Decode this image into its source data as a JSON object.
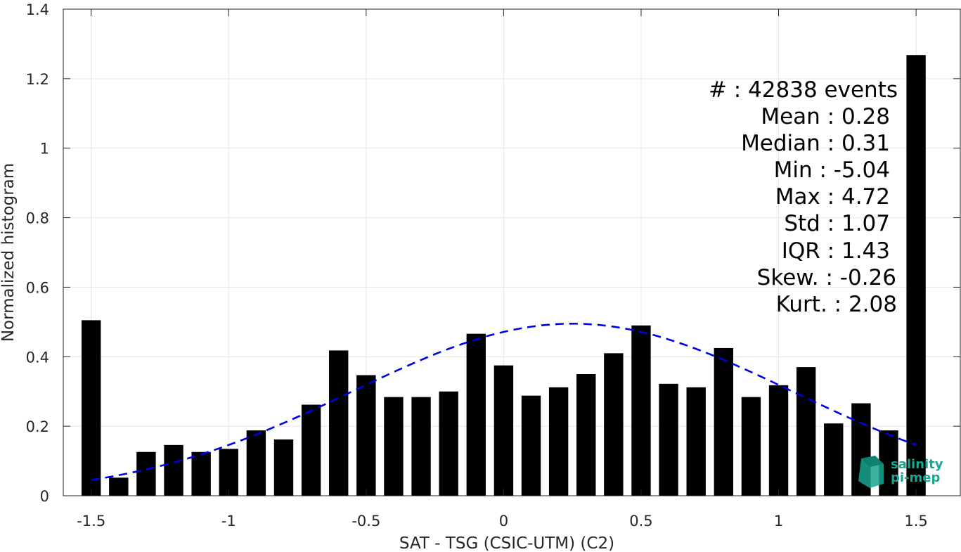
{
  "chart_data": {
    "type": "bar",
    "xlabel": "SAT - TSG (CSIC-UTM) (C2)",
    "ylabel": "Normalized histogram",
    "xlim": [
      -1.5,
      1.5
    ],
    "ylim": [
      0,
      1.4
    ],
    "xticks": [
      -1.5,
      -1,
      -0.5,
      0,
      0.5,
      1,
      1.5
    ],
    "xtick_labels": [
      "-1.5",
      "-1",
      "-0.5",
      "0",
      "0.5",
      "1",
      "1.5"
    ],
    "yticks": [
      0,
      0.2,
      0.4,
      0.6,
      0.8,
      1,
      1.2,
      1.4
    ],
    "ytick_labels": [
      "0",
      "0.2",
      "0.4",
      "0.6",
      "0.8",
      "1",
      "1.2",
      "1.4"
    ],
    "grid": true,
    "bar_color": "#000000",
    "bars": {
      "x": [
        -1.5,
        -1.4,
        -1.3,
        -1.2,
        -1.1,
        -1.0,
        -0.9,
        -0.8,
        -0.7,
        -0.6,
        -0.5,
        -0.4,
        -0.3,
        -0.2,
        -0.1,
        0.0,
        0.1,
        0.2,
        0.3,
        0.4,
        0.5,
        0.6,
        0.7,
        0.8,
        0.9,
        1.0,
        1.1,
        1.2,
        1.3,
        1.4,
        1.5
      ],
      "values": [
        0.505,
        0.052,
        0.126,
        0.146,
        0.126,
        0.135,
        0.188,
        0.162,
        0.262,
        0.418,
        0.347,
        0.284,
        0.284,
        0.3,
        0.466,
        0.375,
        0.288,
        0.312,
        0.35,
        0.41,
        0.49,
        0.322,
        0.312,
        0.425,
        0.284,
        0.318,
        0.37,
        0.208,
        0.266,
        0.188,
        1.268
      ]
    },
    "fit_curve": {
      "style": "dashed",
      "color": "#0000e6",
      "mean": 0.25,
      "std": 0.8,
      "peak": 0.495,
      "x_range": [
        -1.5,
        1.5
      ]
    },
    "stats": [
      "#  : 42838 events",
      "Mean : 0.28",
      "Median : 0.31",
      "Min : -5.04",
      "Max : 4.72",
      "Std : 1.07",
      "IQR : 1.43",
      "Skew. : -0.26",
      "Kurt. : 2.08"
    ],
    "logo": {
      "line1": "salinity",
      "line2": "pi-mep",
      "color": "#1aa58f"
    }
  }
}
